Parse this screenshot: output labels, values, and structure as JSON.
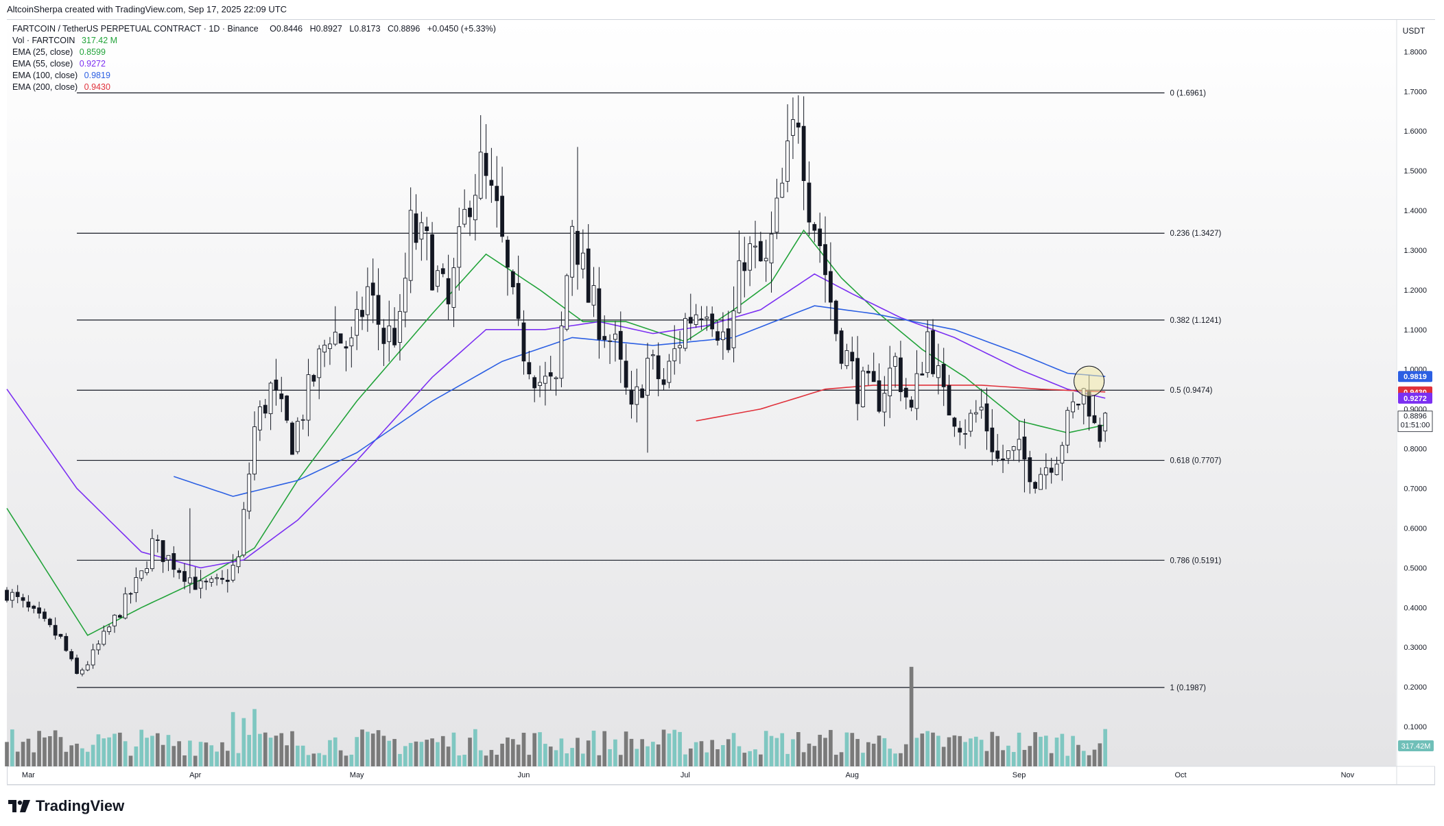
{
  "credit": "AltcoinSherpa created with TradingView.com, Sep 17, 2025 22:09 UTC",
  "legend": {
    "symbol": "FARTCOIN / TetherUS PERPETUAL CONTRACT · 1D · Binance",
    "ohlc": {
      "o": "O0.8446",
      "h": "H0.8927",
      "l": "L0.8173",
      "c": "C0.8896",
      "chg": "+0.0450 (+5.33%)"
    },
    "vol_label": "Vol · FARTCOIN",
    "vol_value": "317.42 M",
    "emas": [
      {
        "label": "EMA (25, close)",
        "value": "0.8599",
        "color": "#22a33a"
      },
      {
        "label": "EMA (55, close)",
        "value": "0.9272",
        "color": "#7b2ff2"
      },
      {
        "label": "EMA (100, close)",
        "value": "0.9819",
        "color": "#2b5fe3"
      },
      {
        "label": "EMA (200, close)",
        "value": "0.9430",
        "color": "#e0303a"
      }
    ]
  },
  "unit": "USDT",
  "brand": "TradingView",
  "colors": {
    "up": "#ffffff",
    "down": "#131722",
    "vol_up": "#7fc7c1",
    "vol_down": "#7a7a7a",
    "vol_spike": "#6fbfb8"
  },
  "chart_data": {
    "type": "candlestick",
    "x_range": [
      "2025-02-25",
      "2025-11-10"
    ],
    "y_range": [
      0.0,
      1.88
    ],
    "y_ticks": [
      "1.8000",
      "1.7000",
      "1.6000",
      "1.5000",
      "1.4000",
      "1.3000",
      "1.2000",
      "1.1000",
      "1.0000",
      "0.9000",
      "0.8000",
      "0.7000",
      "0.6000",
      "0.5000",
      "0.4000",
      "0.3000",
      "0.2000",
      "0.1000"
    ],
    "x_ticks": [
      {
        "label": "Mar",
        "date": "2025-03-01"
      },
      {
        "label": "Apr",
        "date": "2025-04-01"
      },
      {
        "label": "May",
        "date": "2025-05-01"
      },
      {
        "label": "Jun",
        "date": "2025-06-01"
      },
      {
        "label": "Jul",
        "date": "2025-07-01"
      },
      {
        "label": "Aug",
        "date": "2025-08-01"
      },
      {
        "label": "Sep",
        "date": "2025-09-01"
      },
      {
        "label": "Oct",
        "date": "2025-10-01"
      },
      {
        "label": "Nov",
        "date": "2025-11-01"
      }
    ],
    "fib_levels": [
      {
        "ratio": "0",
        "price": 1.6961,
        "label": "0 (1.6961)"
      },
      {
        "ratio": "0.236",
        "price": 1.3427,
        "label": "0.236 (1.3427)"
      },
      {
        "ratio": "0.382",
        "price": 1.1241,
        "label": "0.382 (1.1241)"
      },
      {
        "ratio": "0.5",
        "price": 0.9474,
        "label": "0.5 (0.9474)"
      },
      {
        "ratio": "0.618",
        "price": 0.7707,
        "label": "0.618 (0.7707)"
      },
      {
        "ratio": "0.786",
        "price": 0.5191,
        "label": "0.786 (0.5191)"
      },
      {
        "ratio": "1",
        "price": 0.1987,
        "label": "1 (0.1987)"
      }
    ],
    "fib_start_date": "2025-03-10",
    "fib_end_date": "2025-09-28",
    "price_anchors": [
      [
        "2025-02-25",
        0.44
      ],
      [
        "2025-03-03",
        0.37
      ],
      [
        "2025-03-07",
        0.32
      ],
      [
        "2025-03-10",
        0.23
      ],
      [
        "2025-03-12",
        0.26
      ],
      [
        "2025-03-17",
        0.37
      ],
      [
        "2025-03-22",
        0.48
      ],
      [
        "2025-03-24",
        0.56
      ],
      [
        "2025-03-29",
        0.5
      ],
      [
        "2025-04-02",
        0.45
      ],
      [
        "2025-04-06",
        0.46
      ],
      [
        "2025-04-09",
        0.52
      ],
      [
        "2025-04-12",
        0.85
      ],
      [
        "2025-04-15",
        0.95
      ],
      [
        "2025-04-19",
        0.82
      ],
      [
        "2025-04-23",
        0.98
      ],
      [
        "2025-04-26",
        1.1
      ],
      [
        "2025-04-30",
        1.05
      ],
      [
        "2025-05-03",
        1.2
      ],
      [
        "2025-05-06",
        1.08
      ],
      [
        "2025-05-09",
        1.1
      ],
      [
        "2025-05-11",
        1.35
      ],
      [
        "2025-05-14",
        1.3
      ],
      [
        "2025-05-18",
        1.15
      ],
      [
        "2025-05-22",
        1.45
      ],
      [
        "2025-05-24",
        1.5
      ],
      [
        "2025-05-27",
        1.38
      ],
      [
        "2025-05-31",
        1.08
      ],
      [
        "2025-06-04",
        0.97
      ],
      [
        "2025-06-07",
        0.95
      ],
      [
        "2025-06-10",
        1.38
      ],
      [
        "2025-06-13",
        1.18
      ],
      [
        "2025-06-18",
        1.05
      ],
      [
        "2025-06-21",
        0.88
      ],
      [
        "2025-06-24",
        1.02
      ],
      [
        "2025-06-27",
        0.96
      ],
      [
        "2025-07-01",
        1.12
      ],
      [
        "2025-07-05",
        1.18
      ],
      [
        "2025-07-09",
        1.05
      ],
      [
        "2025-07-12",
        1.3
      ],
      [
        "2025-07-16",
        1.25
      ],
      [
        "2025-07-19",
        1.45
      ],
      [
        "2025-07-22",
        1.66
      ],
      [
        "2025-07-24",
        1.43
      ],
      [
        "2025-07-26",
        1.32
      ],
      [
        "2025-07-29",
        1.1
      ],
      [
        "2025-08-02",
        0.96
      ],
      [
        "2025-08-06",
        0.93
      ],
      [
        "2025-08-09",
        1.02
      ],
      [
        "2025-08-12",
        0.89
      ],
      [
        "2025-08-15",
        1.09
      ],
      [
        "2025-08-18",
        0.92
      ],
      [
        "2025-08-22",
        0.86
      ],
      [
        "2025-08-25",
        0.9
      ],
      [
        "2025-08-28",
        0.77
      ],
      [
        "2025-09-01",
        0.79
      ],
      [
        "2025-09-04",
        0.73
      ],
      [
        "2025-09-08",
        0.79
      ],
      [
        "2025-09-11",
        0.9
      ],
      [
        "2025-09-13",
        0.94
      ],
      [
        "2025-09-14",
        0.92
      ],
      [
        "2025-09-15",
        0.85
      ],
      [
        "2025-09-16",
        0.84
      ],
      [
        "2025-09-17",
        0.8896
      ]
    ],
    "highlights": [
      {
        "date": "2025-07-22",
        "high": 1.69
      },
      {
        "date": "2025-05-24",
        "high": 1.64
      },
      {
        "date": "2025-06-11",
        "high": 1.56
      },
      {
        "date": "2025-03-31",
        "high": 0.65
      },
      {
        "date": "2025-09-02",
        "low": 0.69
      },
      {
        "date": "2025-06-24",
        "low": 0.79
      }
    ],
    "volume_spike": {
      "date": "2025-08-12",
      "relative": 3.3
    },
    "volume_highlights": [
      {
        "date": "2025-04-12",
        "relative": 1.9
      },
      {
        "date": "2025-04-08",
        "relative": 1.8
      },
      {
        "date": "2025-04-10",
        "relative": 1.6
      }
    ],
    "emas": [
      {
        "name": "EMA (25, close)",
        "color": "#22a33a",
        "anchors": [
          [
            "2025-02-25",
            0.65
          ],
          [
            "2025-03-12",
            0.33
          ],
          [
            "2025-03-22",
            0.4
          ],
          [
            "2025-04-02",
            0.47
          ],
          [
            "2025-04-12",
            0.55
          ],
          [
            "2025-04-20",
            0.72
          ],
          [
            "2025-05-01",
            0.92
          ],
          [
            "2025-05-15",
            1.14
          ],
          [
            "2025-05-25",
            1.29
          ],
          [
            "2025-06-04",
            1.2
          ],
          [
            "2025-06-12",
            1.12
          ],
          [
            "2025-06-20",
            1.12
          ],
          [
            "2025-07-01",
            1.07
          ],
          [
            "2025-07-10",
            1.15
          ],
          [
            "2025-07-17",
            1.22
          ],
          [
            "2025-07-23",
            1.35
          ],
          [
            "2025-07-30",
            1.23
          ],
          [
            "2025-08-06",
            1.14
          ],
          [
            "2025-08-14",
            1.05
          ],
          [
            "2025-08-22",
            0.98
          ],
          [
            "2025-09-01",
            0.87
          ],
          [
            "2025-09-10",
            0.84
          ],
          [
            "2025-09-17",
            0.8599
          ]
        ]
      },
      {
        "name": "EMA (55, close)",
        "color": "#7b2ff2",
        "anchors": [
          [
            "2025-02-25",
            0.95
          ],
          [
            "2025-03-10",
            0.7
          ],
          [
            "2025-03-22",
            0.54
          ],
          [
            "2025-04-02",
            0.5
          ],
          [
            "2025-04-10",
            0.52
          ],
          [
            "2025-04-20",
            0.62
          ],
          [
            "2025-05-01",
            0.77
          ],
          [
            "2025-05-15",
            0.98
          ],
          [
            "2025-05-25",
            1.1
          ],
          [
            "2025-06-05",
            1.1
          ],
          [
            "2025-06-15",
            1.12
          ],
          [
            "2025-06-25",
            1.09
          ],
          [
            "2025-07-05",
            1.11
          ],
          [
            "2025-07-15",
            1.15
          ],
          [
            "2025-07-25",
            1.24
          ],
          [
            "2025-08-01",
            1.19
          ],
          [
            "2025-08-10",
            1.13
          ],
          [
            "2025-08-20",
            1.08
          ],
          [
            "2025-09-01",
            1.0
          ],
          [
            "2025-09-10",
            0.95
          ],
          [
            "2025-09-17",
            0.9272
          ]
        ]
      },
      {
        "name": "EMA (100, close)",
        "color": "#2b5fe3",
        "anchors": [
          [
            "2025-03-28",
            0.73
          ],
          [
            "2025-04-08",
            0.68
          ],
          [
            "2025-04-20",
            0.72
          ],
          [
            "2025-05-01",
            0.79
          ],
          [
            "2025-05-15",
            0.92
          ],
          [
            "2025-05-28",
            1.02
          ],
          [
            "2025-06-10",
            1.08
          ],
          [
            "2025-06-25",
            1.06
          ],
          [
            "2025-07-10",
            1.08
          ],
          [
            "2025-07-25",
            1.16
          ],
          [
            "2025-08-05",
            1.14
          ],
          [
            "2025-08-20",
            1.1
          ],
          [
            "2025-09-01",
            1.04
          ],
          [
            "2025-09-10",
            0.99
          ],
          [
            "2025-09-17",
            0.9819
          ]
        ]
      },
      {
        "name": "EMA (200, close)",
        "color": "#e0303a",
        "anchors": [
          [
            "2025-07-03",
            0.87
          ],
          [
            "2025-07-15",
            0.9
          ],
          [
            "2025-07-27",
            0.95
          ],
          [
            "2025-08-05",
            0.96
          ],
          [
            "2025-08-15",
            0.96
          ],
          [
            "2025-08-25",
            0.96
          ],
          [
            "2025-09-05",
            0.95
          ],
          [
            "2025-09-17",
            0.943
          ]
        ]
      }
    ],
    "last_price": {
      "value": "0.8896",
      "countdown": "01:51:00"
    },
    "price_tags": [
      {
        "value": "0.9819",
        "color": "#2b5fe3"
      },
      {
        "value": "0.9430",
        "color": "#e0303a"
      },
      {
        "value": "0.9272",
        "color": "#7b2ff2"
      },
      {
        "value": "0.8599",
        "color": "#22a33a"
      }
    ],
    "volume_tag": {
      "value": "317.42M",
      "color": "#6fbfb8"
    },
    "highlight_circle": {
      "date": "2025-09-14",
      "price": 0.97,
      "color": "#f3e9a8"
    },
    "grid": false
  }
}
